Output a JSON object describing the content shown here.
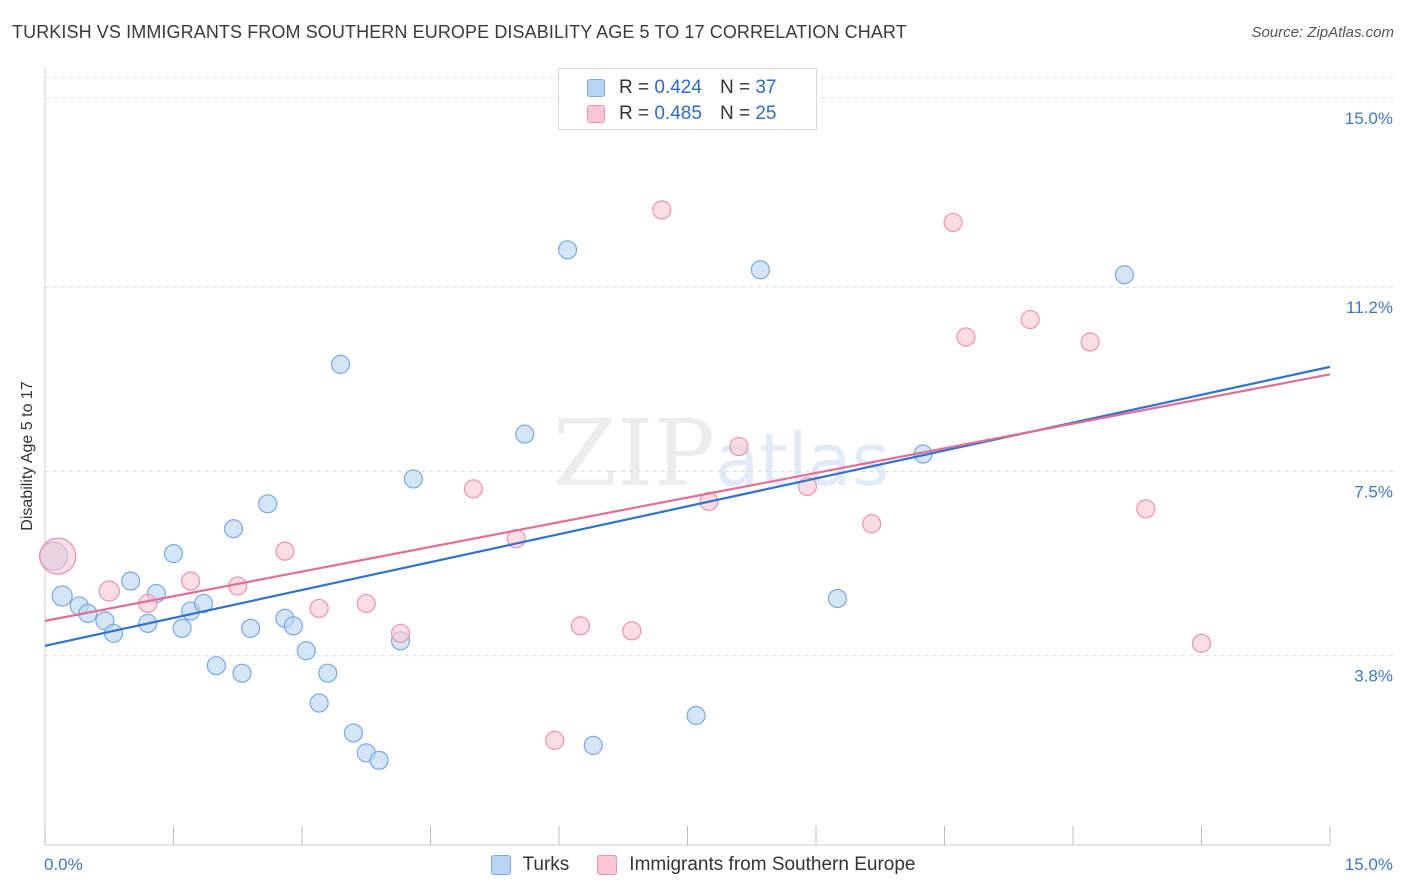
{
  "title": "TURKISH VS IMMIGRANTS FROM SOUTHERN EUROPE DISABILITY AGE 5 TO 17 CORRELATION CHART",
  "source": "Source: ZipAtlas.com",
  "watermark": {
    "zip": "ZIP",
    "atlas": "atlas"
  },
  "legend": {
    "rows": [
      {
        "r_label": "R = ",
        "r_value": "0.424",
        "n_label": "N = ",
        "n_value": "37"
      },
      {
        "r_label": "R = ",
        "r_value": "0.485",
        "n_label": "N = ",
        "n_value": "25"
      }
    ]
  },
  "colors": {
    "turks_fill": "#b8d3f3",
    "turks_stroke": "#7aa8e0",
    "turks_line": "#2f72d0",
    "immig_fill": "#f8c6d5",
    "immig_stroke": "#ee92ae",
    "immig_line": "#e26d97",
    "grid": "#dcdcdc",
    "tick": "#3e78c4"
  },
  "chart_data": {
    "type": "scatter",
    "title": "TURKISH VS IMMIGRANTS FROM SOUTHERN EUROPE DISABILITY AGE 5 TO 17 CORRELATION CHART",
    "xlabel": "",
    "ylabel": "Disability Age 5 to 17",
    "xlim": [
      0,
      15
    ],
    "ylim": [
      0,
      15.4
    ],
    "x_tick_labels": [
      "0.0%",
      "15.0%"
    ],
    "y_ticks": [
      3.8,
      7.5,
      11.2,
      15.0
    ],
    "y_tick_labels": [
      "3.8%",
      "7.5%",
      "11.2%",
      "15.0%"
    ],
    "series": [
      {
        "name": "Turks",
        "R": 0.424,
        "N": 37,
        "trend": [
          [
            0.0,
            4.0
          ],
          [
            15.0,
            9.6
          ]
        ],
        "points": [
          [
            0.1,
            5.8,
            14
          ],
          [
            0.2,
            5.0,
            10
          ],
          [
            0.4,
            4.8,
            9
          ],
          [
            0.5,
            4.65,
            9
          ],
          [
            0.7,
            4.5,
            9
          ],
          [
            0.8,
            4.25,
            9
          ],
          [
            1.0,
            5.3,
            9
          ],
          [
            1.2,
            4.45,
            9
          ],
          [
            1.3,
            5.05,
            9
          ],
          [
            1.5,
            5.85,
            9
          ],
          [
            1.6,
            4.35,
            9
          ],
          [
            1.7,
            4.7,
            9
          ],
          [
            1.85,
            4.85,
            9
          ],
          [
            2.0,
            3.6,
            9
          ],
          [
            2.2,
            6.35,
            9
          ],
          [
            2.3,
            3.45,
            9
          ],
          [
            2.4,
            4.35,
            9
          ],
          [
            2.6,
            6.85,
            9
          ],
          [
            2.8,
            4.55,
            9
          ],
          [
            2.9,
            4.4,
            9
          ],
          [
            3.05,
            3.9,
            9
          ],
          [
            3.2,
            2.85,
            9
          ],
          [
            3.3,
            3.45,
            9
          ],
          [
            3.45,
            9.65,
            9
          ],
          [
            3.6,
            2.25,
            9
          ],
          [
            3.75,
            1.85,
            9
          ],
          [
            3.9,
            1.7,
            9
          ],
          [
            4.15,
            4.1,
            9
          ],
          [
            4.3,
            7.35,
            9
          ],
          [
            5.6,
            8.25,
            9
          ],
          [
            6.1,
            11.95,
            9
          ],
          [
            6.4,
            2.0,
            9
          ],
          [
            7.6,
            2.6,
            9
          ],
          [
            8.35,
            11.55,
            9
          ],
          [
            9.25,
            4.95,
            9
          ],
          [
            10.25,
            7.85,
            9
          ],
          [
            12.6,
            11.45,
            9
          ]
        ]
      },
      {
        "name": "Immigrants from Southern Europe",
        "R": 0.485,
        "N": 25,
        "trend": [
          [
            0.0,
            4.5
          ],
          [
            15.0,
            9.45
          ]
        ],
        "points": [
          [
            0.15,
            5.8,
            18
          ],
          [
            0.75,
            5.1,
            10
          ],
          [
            1.2,
            4.85,
            9
          ],
          [
            1.7,
            5.3,
            9
          ],
          [
            2.25,
            5.2,
            9
          ],
          [
            2.8,
            5.9,
            9
          ],
          [
            3.2,
            4.75,
            9
          ],
          [
            3.75,
            4.85,
            9
          ],
          [
            4.15,
            4.25,
            9
          ],
          [
            5.0,
            7.15,
            9
          ],
          [
            5.5,
            6.15,
            9
          ],
          [
            5.95,
            2.1,
            9
          ],
          [
            6.25,
            4.4,
            9
          ],
          [
            6.85,
            4.3,
            9
          ],
          [
            7.2,
            12.75,
            9
          ],
          [
            7.75,
            6.9,
            9
          ],
          [
            8.1,
            8.0,
            9
          ],
          [
            8.9,
            7.2,
            9
          ],
          [
            9.65,
            6.45,
            9
          ],
          [
            10.6,
            12.5,
            9
          ],
          [
            10.75,
            10.2,
            9
          ],
          [
            11.5,
            10.55,
            9
          ],
          [
            12.2,
            10.1,
            9
          ],
          [
            12.85,
            6.75,
            9
          ],
          [
            13.5,
            4.05,
            9
          ]
        ]
      }
    ]
  }
}
